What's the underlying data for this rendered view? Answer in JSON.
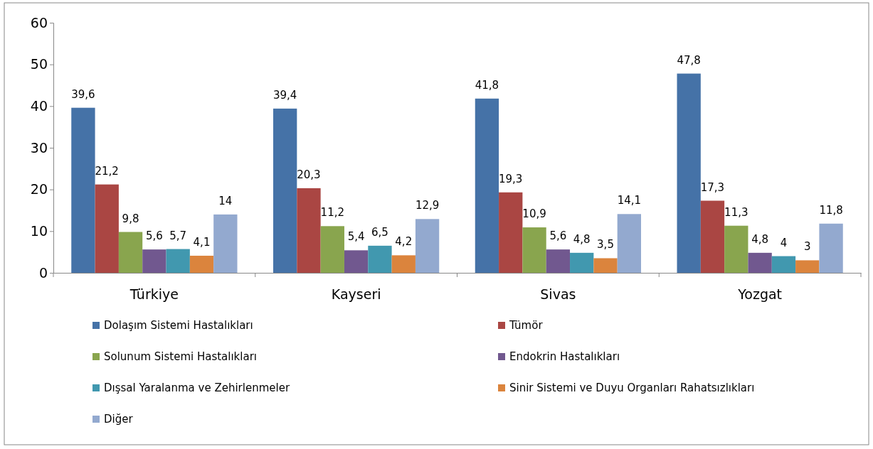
{
  "chart_data": {
    "type": "bar",
    "categories": [
      "Türkiye",
      "Kayseri",
      "Sivas",
      "Yozgat"
    ],
    "series": [
      {
        "name": "Dolaşım Sistemi Hastalıkları",
        "color": "#4572a7",
        "values": [
          39.6,
          39.4,
          41.8,
          47.8
        ],
        "value_labels": [
          "39,6",
          "39,4",
          "41,8",
          "47,8"
        ]
      },
      {
        "name": "Tümör",
        "color": "#aa4643",
        "values": [
          21.2,
          20.3,
          19.3,
          17.3
        ],
        "value_labels": [
          "21,2",
          "20,3",
          "19,3",
          "17,3"
        ]
      },
      {
        "name": "Solunum Sistemi Hastalıkları",
        "color": "#89a54e",
        "values": [
          9.8,
          11.2,
          10.9,
          11.3
        ],
        "value_labels": [
          "9,8",
          "11,2",
          "10,9",
          "11,3"
        ]
      },
      {
        "name": "Endokrin Hastalıkları",
        "color": "#71588f",
        "values": [
          5.6,
          5.4,
          5.6,
          4.8
        ],
        "value_labels": [
          "5,6",
          "5,4",
          "5,6",
          "4,8"
        ]
      },
      {
        "name": "Dışsal Yaralanma ve Zehirlenmeler",
        "color": "#4198af",
        "values": [
          5.7,
          6.5,
          4.8,
          4
        ],
        "value_labels": [
          "5,7",
          "6,5",
          "4,8",
          "4"
        ]
      },
      {
        "name": "Sinir Sistemi ve Duyu Organları Rahatsızlıkları",
        "color": "#db843d",
        "values": [
          4.1,
          4.2,
          3.5,
          3
        ],
        "value_labels": [
          "4,1",
          "4,2",
          "3,5",
          "3"
        ]
      },
      {
        "name": "Diğer",
        "color": "#93a9cf",
        "values": [
          14,
          12.9,
          14.1,
          11.8
        ],
        "value_labels": [
          "14",
          "12,9",
          "14,1",
          "11,8"
        ]
      }
    ],
    "ylim": [
      0,
      60
    ],
    "yticks": [
      0,
      10,
      20,
      30,
      40,
      50,
      60
    ],
    "legend": "bottom"
  }
}
